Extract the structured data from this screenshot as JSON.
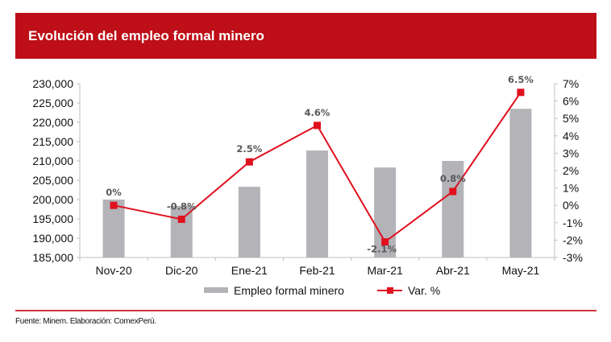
{
  "header": {
    "title": "Evolución del empleo formal minero"
  },
  "footer": {
    "source": "Fuente: Minem. Elaboración: ComexPerú."
  },
  "colors": {
    "header_bg": "#be0e17",
    "bar": "#b3b3b8",
    "line": "#e0101e",
    "rule": "#d2323c"
  },
  "chart_data": {
    "type": "bar",
    "title": "Evolución del empleo formal minero",
    "xlabel": "",
    "ylabel": "",
    "categories": [
      "Nov-20",
      "Dic-20",
      "Ene-21",
      "Feb-21",
      "Mar-21",
      "Abr-21",
      "May-21"
    ],
    "series": [
      {
        "name": "Empleo formal minero",
        "type": "bar",
        "axis": "left",
        "values": [
          200000,
          198400,
          203300,
          212700,
          208300,
          210000,
          223500
        ]
      },
      {
        "name": "Var. %",
        "type": "line",
        "axis": "right",
        "values": [
          0,
          -0.8,
          2.5,
          4.6,
          -2.1,
          0.8,
          6.5
        ],
        "labels": [
          "0%",
          "-0.8%",
          "2.5%",
          "4.6%",
          "-2.1%",
          "0.8%",
          "6.5%"
        ]
      }
    ],
    "y_left": {
      "lim": [
        185000,
        230000
      ],
      "ticks": [
        185000,
        190000,
        195000,
        200000,
        205000,
        210000,
        215000,
        220000,
        225000,
        230000
      ],
      "tick_labels": [
        "185,000",
        "190,000",
        "195,000",
        "200,000",
        "205,000",
        "210,000",
        "215,000",
        "220,000",
        "225,000",
        "230,000"
      ]
    },
    "y_right": {
      "lim": [
        -3,
        7
      ],
      "ticks": [
        -3,
        -2,
        -1,
        0,
        1,
        2,
        3,
        4,
        5,
        6,
        7
      ],
      "tick_labels": [
        "-3%",
        "-2%",
        "-1%",
        "0%",
        "1%",
        "2%",
        "3%",
        "4%",
        "5%",
        "6%",
        "7%"
      ]
    },
    "grid": false,
    "legend": {
      "placement": "bottom",
      "entries": [
        "Empleo formal minero",
        "Var. %"
      ]
    }
  }
}
